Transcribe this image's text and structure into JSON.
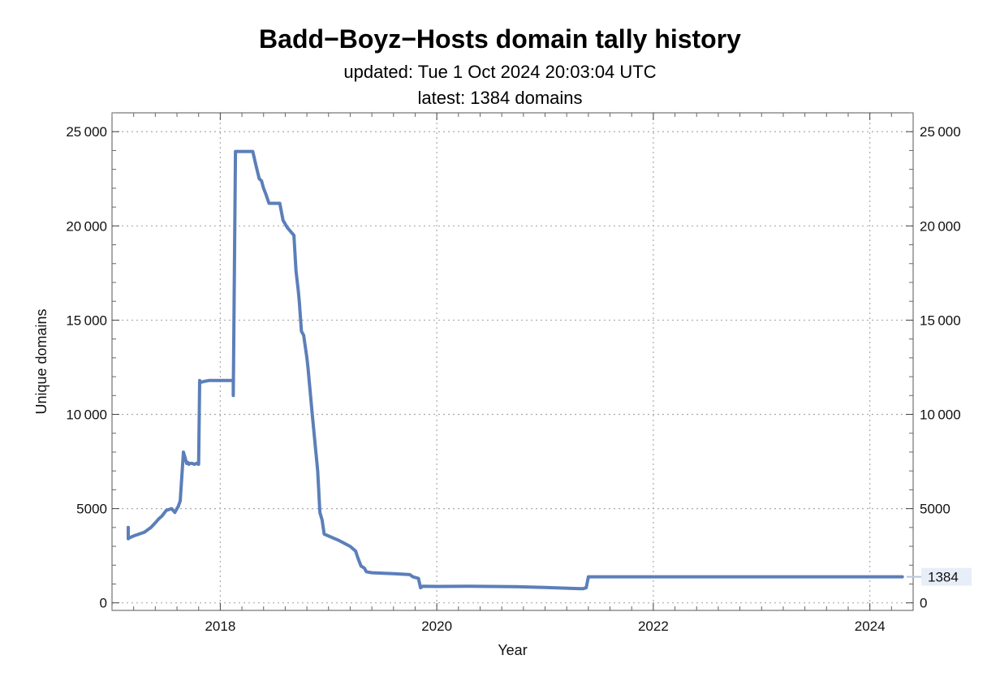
{
  "chart_data": {
    "type": "line",
    "title": "Badd−Boyz−Hosts domain tally history",
    "subtitle": [
      "updated: Tue 1 Oct 2024 20:03:04 UTC",
      "latest: 1384 domains"
    ],
    "xlabel": "Year",
    "ylabel": "Unique domains",
    "xlim": [
      2017.0,
      2024.4
    ],
    "ylim": [
      -400,
      26000
    ],
    "x_ticks": [
      2018,
      2020,
      2022,
      2024
    ],
    "x_tick_labels": [
      "2018",
      "2020",
      "2022",
      "2024"
    ],
    "y_ticks": [
      0,
      5000,
      10000,
      15000,
      20000,
      25000
    ],
    "y_tick_labels": [
      "0",
      "5000",
      "10 000",
      "15 000",
      "20 000",
      "25 000"
    ],
    "grid": true,
    "end_label": "1384",
    "series": [
      {
        "color": "#5b7fb9",
        "x": [
          2017.15,
          2017.15,
          2017.16,
          2017.2,
          2017.3,
          2017.36,
          2017.4,
          2017.43,
          2017.46,
          2017.5,
          2017.55,
          2017.58,
          2017.6,
          2017.61,
          2017.63,
          2017.66,
          2017.69,
          2017.7,
          2017.71,
          2017.72,
          2017.74,
          2017.76,
          2017.78,
          2017.8,
          2017.81,
          2017.82,
          2017.85,
          2017.9,
          2018.0,
          2018.12,
          2018.12,
          2018.14,
          2018.16,
          2018.2,
          2018.3,
          2018.33,
          2018.36,
          2018.38,
          2018.4,
          2018.42,
          2018.45,
          2018.48,
          2018.55,
          2018.58,
          2018.62,
          2018.68,
          2018.7,
          2018.72,
          2018.73,
          2018.75,
          2018.77,
          2018.8,
          2018.81,
          2018.85,
          2018.9,
          2018.92,
          2018.94,
          2018.96,
          2019.1,
          2019.2,
          2019.25,
          2019.27,
          2019.3,
          2019.33,
          2019.35,
          2019.4,
          2019.6,
          2019.75,
          2019.78,
          2019.83,
          2019.85,
          2019.87,
          2020.0,
          2020.3,
          2020.7,
          2021.0,
          2021.3,
          2021.35,
          2021.38,
          2021.4,
          2021.45,
          2021.7,
          2022.0,
          2022.5,
          2023.0,
          2023.5,
          2024.0,
          2024.3
        ],
        "y": [
          4000,
          3400,
          3450,
          3550,
          3750,
          4000,
          4250,
          4450,
          4600,
          4900,
          5000,
          4800,
          5000,
          5100,
          5400,
          8000,
          7400,
          7450,
          7350,
          7400,
          7400,
          7350,
          7400,
          7350,
          11800,
          11700,
          11750,
          11800,
          11800,
          11800,
          11000,
          23950,
          23950,
          23950,
          23950,
          23200,
          22500,
          22400,
          22000,
          21700,
          21200,
          21200,
          21200,
          20300,
          19900,
          19500,
          17600,
          16600,
          16000,
          14400,
          14200,
          13000,
          12500,
          10000,
          7000,
          4800,
          4400,
          3650,
          3300,
          3000,
          2750,
          2400,
          1950,
          1850,
          1650,
          1600,
          1550,
          1500,
          1380,
          1300,
          800,
          880,
          870,
          880,
          860,
          820,
          760,
          750,
          800,
          1384,
          1384,
          1384,
          1384,
          1384,
          1384,
          1384,
          1384,
          1384
        ]
      }
    ]
  }
}
